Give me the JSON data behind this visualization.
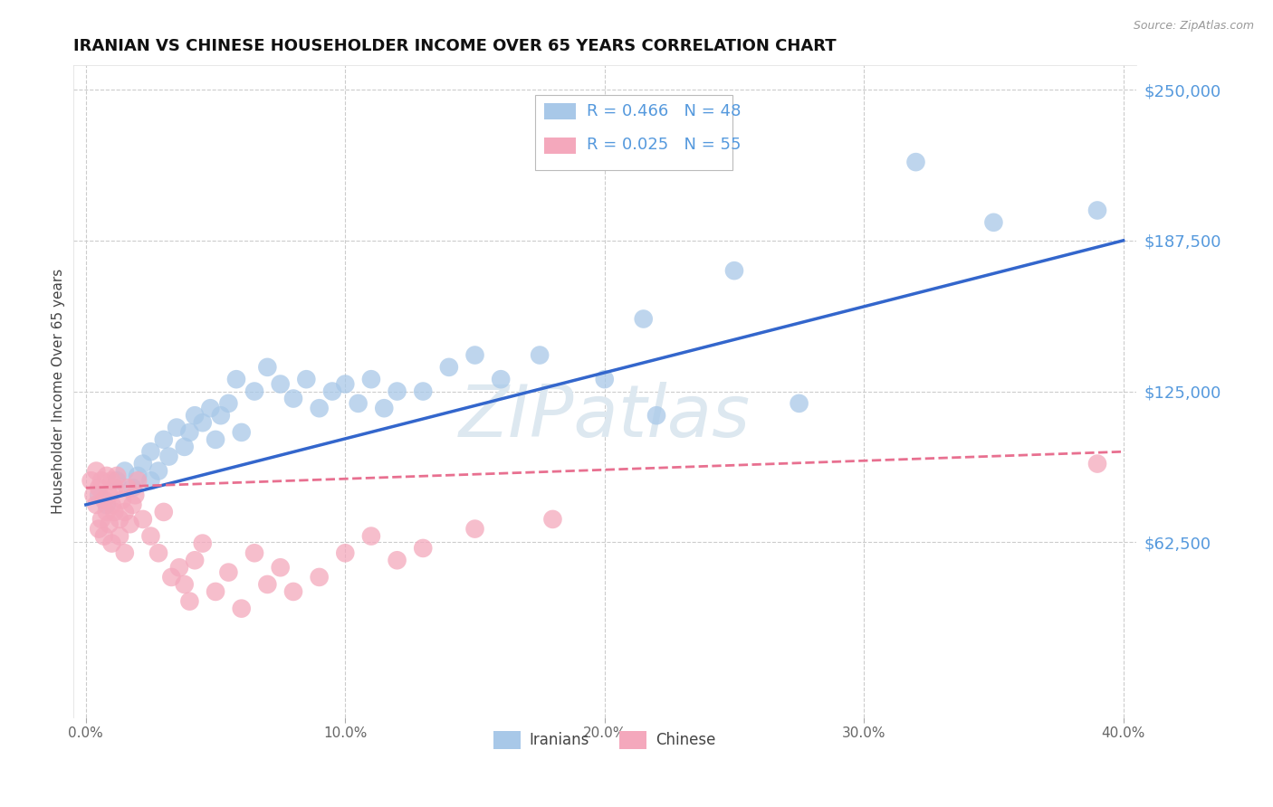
{
  "title": "IRANIAN VS CHINESE HOUSEHOLDER INCOME OVER 65 YEARS CORRELATION CHART",
  "source": "Source: ZipAtlas.com",
  "ylabel": "Householder Income Over 65 years",
  "xlabel_ticks": [
    "0.0%",
    "10.0%",
    "20.0%",
    "30.0%",
    "40.0%"
  ],
  "xlabel_vals": [
    0.0,
    0.1,
    0.2,
    0.3,
    0.4
  ],
  "ylabel_ticks": [
    "$62,500",
    "$125,000",
    "$187,500",
    "$250,000"
  ],
  "ylabel_vals": [
    62500,
    125000,
    187500,
    250000
  ],
  "ylim": [
    -10000,
    260000
  ],
  "xlim": [
    -0.005,
    0.405
  ],
  "iranian_R": 0.466,
  "iranian_N": 48,
  "chinese_R": 0.025,
  "chinese_N": 55,
  "iranian_color": "#a8c8e8",
  "chinese_color": "#f4a8bc",
  "trend_iranian_color": "#3366cc",
  "trend_chinese_color": "#e87090",
  "watermark_color": "#dde8f0",
  "background_color": "#ffffff",
  "grid_color": "#cccccc",
  "axis_label_color": "#5599dd",
  "title_color": "#111111",
  "iranians_x": [
    0.005,
    0.008,
    0.012,
    0.015,
    0.018,
    0.02,
    0.022,
    0.025,
    0.025,
    0.028,
    0.03,
    0.032,
    0.035,
    0.038,
    0.04,
    0.042,
    0.045,
    0.048,
    0.05,
    0.052,
    0.055,
    0.058,
    0.06,
    0.065,
    0.07,
    0.075,
    0.08,
    0.085,
    0.09,
    0.095,
    0.1,
    0.105,
    0.11,
    0.115,
    0.12,
    0.13,
    0.14,
    0.15,
    0.16,
    0.175,
    0.2,
    0.215,
    0.22,
    0.25,
    0.275,
    0.32,
    0.35,
    0.39
  ],
  "iranians_y": [
    82000,
    78000,
    88000,
    92000,
    85000,
    90000,
    95000,
    88000,
    100000,
    92000,
    105000,
    98000,
    110000,
    102000,
    108000,
    115000,
    112000,
    118000,
    105000,
    115000,
    120000,
    130000,
    108000,
    125000,
    135000,
    128000,
    122000,
    130000,
    118000,
    125000,
    128000,
    120000,
    130000,
    118000,
    125000,
    125000,
    135000,
    140000,
    130000,
    140000,
    130000,
    155000,
    115000,
    175000,
    120000,
    220000,
    195000,
    200000
  ],
  "chinese_x": [
    0.002,
    0.003,
    0.004,
    0.004,
    0.005,
    0.005,
    0.006,
    0.006,
    0.007,
    0.007,
    0.008,
    0.008,
    0.009,
    0.009,
    0.01,
    0.01,
    0.01,
    0.011,
    0.011,
    0.012,
    0.013,
    0.013,
    0.014,
    0.015,
    0.015,
    0.016,
    0.017,
    0.018,
    0.019,
    0.02,
    0.022,
    0.025,
    0.028,
    0.03,
    0.033,
    0.036,
    0.038,
    0.04,
    0.042,
    0.045,
    0.05,
    0.055,
    0.06,
    0.065,
    0.07,
    0.075,
    0.08,
    0.09,
    0.1,
    0.11,
    0.12,
    0.13,
    0.15,
    0.18,
    0.39
  ],
  "chinese_y": [
    88000,
    82000,
    78000,
    92000,
    68000,
    85000,
    72000,
    88000,
    65000,
    80000,
    75000,
    90000,
    70000,
    82000,
    78000,
    88000,
    62000,
    75000,
    85000,
    90000,
    72000,
    65000,
    80000,
    75000,
    58000,
    85000,
    70000,
    78000,
    82000,
    88000,
    72000,
    65000,
    58000,
    75000,
    48000,
    52000,
    45000,
    38000,
    55000,
    62000,
    42000,
    50000,
    35000,
    58000,
    45000,
    52000,
    42000,
    48000,
    58000,
    65000,
    55000,
    60000,
    68000,
    72000,
    95000
  ],
  "iranian_trend_x0": 0.0,
  "iranian_trend_y0": 78000,
  "iranian_trend_x1": 0.4,
  "iranian_trend_y1": 187500,
  "chinese_trend_x0": 0.0,
  "chinese_trend_y0": 85000,
  "chinese_trend_x1": 0.4,
  "chinese_trend_y1": 100000
}
